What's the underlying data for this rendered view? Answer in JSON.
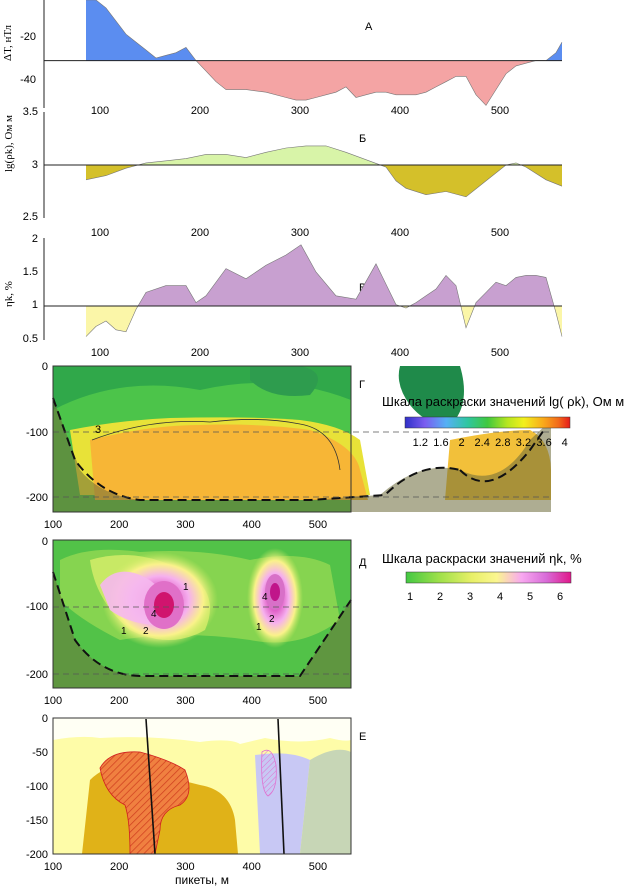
{
  "chart_data": [
    {
      "id": "A",
      "panel_label": "А",
      "type": "area",
      "ylabel": "ΔT, нТл",
      "yticks": [
        "-20",
        "-40"
      ],
      "ylim": [
        -48,
        -7
      ],
      "baseline": -30,
      "x": [
        86,
        96,
        106,
        116,
        126,
        136,
        146,
        156,
        166,
        176,
        186,
        196,
        206,
        216,
        226,
        246,
        266,
        286,
        296,
        306,
        316,
        326,
        336,
        346,
        356,
        366,
        376,
        386,
        396,
        406,
        416,
        426,
        436,
        446,
        456,
        466,
        476,
        486,
        496,
        506,
        516,
        526,
        536,
        546,
        556,
        562
      ],
      "values": [
        -7,
        -7,
        -10,
        -15,
        -20,
        -23,
        -26,
        -29,
        -28,
        -27,
        -25,
        -30,
        -34,
        -38,
        -41,
        -41,
        -42,
        -44,
        -45,
        -45,
        -44,
        -43,
        -42,
        -40,
        -44,
        -43,
        -42,
        -42,
        -43,
        -43,
        -43,
        -42,
        -40,
        -38,
        -36,
        -36,
        -43,
        -47,
        -41,
        -35,
        -32,
        -31,
        -30,
        -30,
        -27,
        -23
      ],
      "pos_color": "#5b8df0",
      "neg_color": "#f4a4a4"
    },
    {
      "id": "B",
      "panel_label": "Б",
      "type": "area",
      "ylabel": "lg(ρk), Ом м",
      "yticks": [
        "3.5",
        "3",
        "2.5"
      ],
      "ylim": [
        2.5,
        3.5
      ],
      "baseline": 3.0,
      "x": [
        86,
        106,
        126,
        146,
        166,
        186,
        206,
        226,
        246,
        266,
        286,
        306,
        326,
        346,
        366,
        386,
        396,
        406,
        426,
        446,
        466,
        486,
        506,
        516,
        526,
        546,
        562
      ],
      "values": [
        2.86,
        2.9,
        2.97,
        3.02,
        3.04,
        3.06,
        3.1,
        3.1,
        3.07,
        3.12,
        3.16,
        3.18,
        3.18,
        3.12,
        3.05,
        2.98,
        2.85,
        2.78,
        2.72,
        2.75,
        2.7,
        2.85,
        3.0,
        3.02,
        2.98,
        2.86,
        2.8
      ],
      "pos_color": "#d8f4a8",
      "neg_color": "#d4c02a"
    },
    {
      "id": "C",
      "panel_label": "В",
      "type": "area",
      "ylabel": "ηk, %",
      "yticks": [
        "2",
        "1.5",
        "1",
        "0.5"
      ],
      "ylim": [
        0.5,
        2.0
      ],
      "baseline": 1.0,
      "x": [
        86,
        96,
        106,
        116,
        126,
        136,
        146,
        166,
        186,
        196,
        206,
        226,
        246,
        266,
        286,
        301,
        316,
        336,
        356,
        376,
        396,
        406,
        416,
        426,
        436,
        446,
        456,
        466,
        476,
        486,
        496,
        506,
        516,
        526,
        536,
        546,
        556,
        562
      ],
      "values": [
        0.55,
        0.7,
        0.78,
        0.65,
        0.62,
        0.95,
        1.2,
        1.3,
        1.3,
        1.05,
        1.15,
        1.55,
        1.4,
        1.6,
        1.75,
        1.9,
        1.5,
        1.15,
        1.1,
        1.62,
        1.02,
        0.97,
        1.05,
        1.15,
        1.25,
        1.45,
        1.3,
        0.68,
        1.05,
        1.2,
        1.35,
        1.3,
        1.42,
        1.45,
        1.45,
        1.42,
        0.9,
        0.55
      ],
      "pos_color": "#c8a0d0",
      "neg_color": "#fbf6a8"
    },
    {
      "id": "D",
      "panel_label": "Г",
      "type": "heatmap",
      "xticks": [
        "100",
        "200",
        "300",
        "400",
        "500"
      ],
      "yticks": [
        "0",
        "-100",
        "-200"
      ],
      "contour_labels": [
        "3"
      ],
      "scale_title": "Шкала раскраски значений lg( ρk), Ом м",
      "scale_ticks": [
        "1.2",
        "1.6",
        "2",
        "2.4",
        "2.8",
        "3.2",
        "3.6",
        "4"
      ],
      "scale_colors": [
        "#3030c8",
        "#7a5cf0",
        "#55b0f5",
        "#2fc6a0",
        "#3fc83f",
        "#b6e620",
        "#f2f01e",
        "#f9a81a",
        "#f26a1a",
        "#e61a1a"
      ]
    },
    {
      "id": "E",
      "panel_label": "Д",
      "type": "heatmap",
      "xticks": [
        "100",
        "200",
        "300",
        "400",
        "500"
      ],
      "yticks": [
        "0",
        "-100",
        "-200"
      ],
      "contour_labels": [
        "1",
        "2",
        "4",
        "1",
        "2",
        "4",
        "1"
      ],
      "scale_title": "Шкала раскраски значений ηk, %",
      "scale_ticks": [
        "1",
        "2",
        "3",
        "4",
        "5",
        "6"
      ],
      "scale_colors": [
        "#43c843",
        "#9ee04a",
        "#e8f068",
        "#fbf690",
        "#f8a8f0",
        "#d86cd8",
        "#e0188a"
      ]
    },
    {
      "id": "F",
      "panel_label": "Е",
      "type": "area",
      "xticks": [
        "100",
        "200",
        "300",
        "400",
        "500"
      ],
      "yticks": [
        "0",
        "-50",
        "-100",
        "-150",
        "-200"
      ],
      "xlabel": "пикеты, м",
      "layers": [
        "cover",
        "rock_yellow",
        "rock_ochre",
        "intrusion_orange",
        "rock_blue",
        "rock_green",
        "fault_1",
        "fault_2",
        "ore_zone_pink"
      ]
    }
  ]
}
